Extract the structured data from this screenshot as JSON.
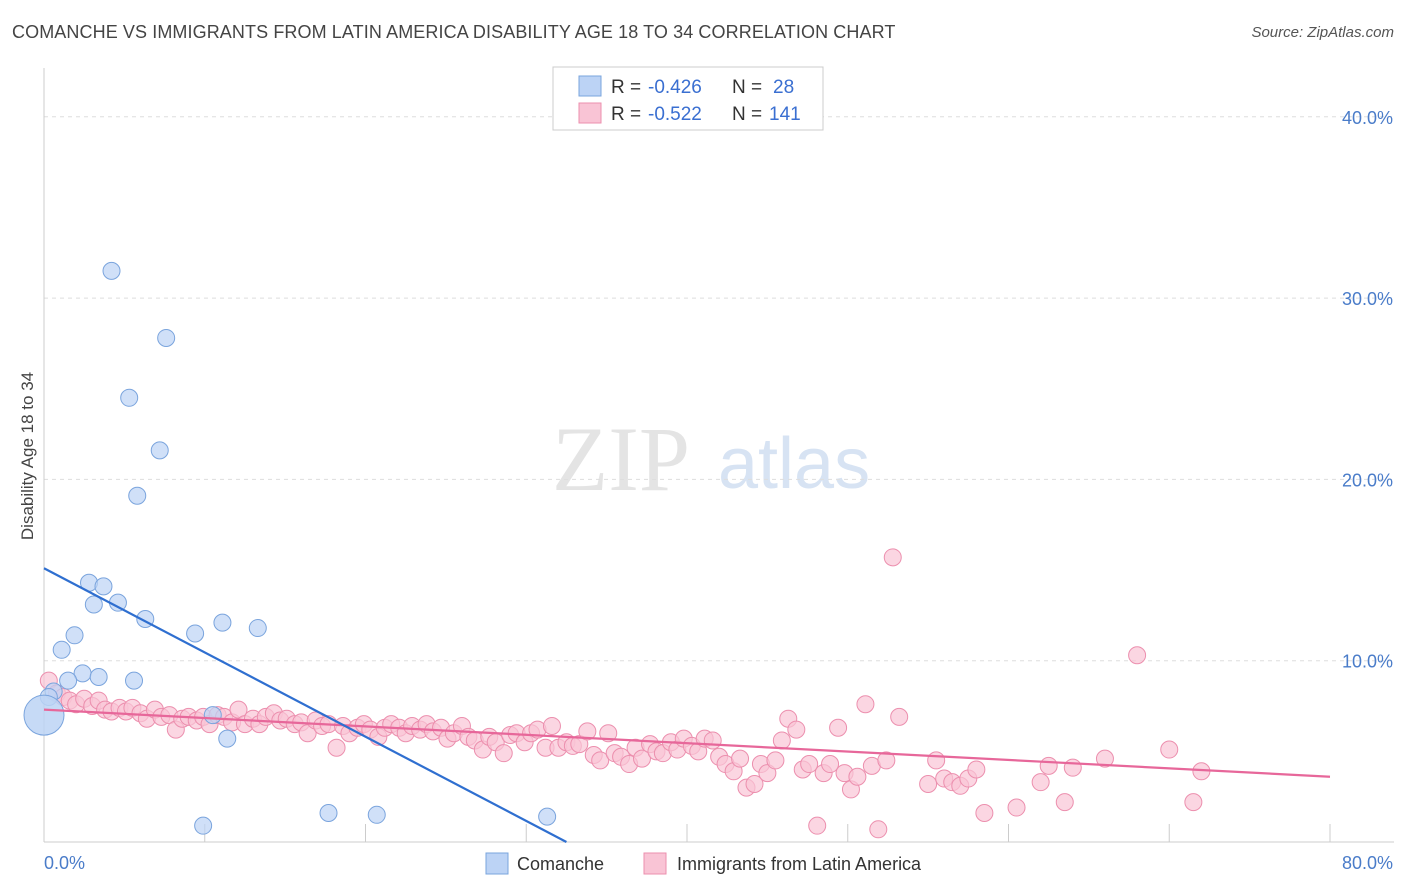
{
  "title": "COMANCHE VS IMMIGRANTS FROM LATIN AMERICA DISABILITY AGE 18 TO 34 CORRELATION CHART",
  "source": "Source: ZipAtlas.com",
  "watermark": {
    "part1": "ZIP",
    "part2": "atlas"
  },
  "colors": {
    "comanche_fill": "#bcd3f5",
    "comanche_stroke": "#7aa4dd",
    "comanche_line": "#2f6fd0",
    "latin_fill": "#f9c4d5",
    "latin_stroke": "#ec8fae",
    "latin_line": "#e7679a",
    "axis_text": "#4a7cc9",
    "grid": "#dddddd"
  },
  "legend": {
    "rows": [
      {
        "r_label": "R = ",
        "r_value": "-0.426",
        "n_label": "N = ",
        "n_value": "28"
      },
      {
        "r_label": "R = ",
        "r_value": "-0.522",
        "n_label": "N = ",
        "n_value": "141"
      }
    ]
  },
  "bottom_legend": {
    "comanche": "Comanche",
    "latin": "Immigrants from Latin America"
  },
  "chart_data": {
    "type": "scatter",
    "title": "COMANCHE VS IMMIGRANTS FROM LATIN AMERICA DISABILITY AGE 18 TO 34 CORRELATION CHART",
    "xlabel": "",
    "ylabel": "Disability Age 18 to 34",
    "xlim": [
      0,
      80
    ],
    "ylim": [
      0,
      42
    ],
    "x_tick_labels": [
      "0.0%",
      "80.0%"
    ],
    "y_ticks": [
      10,
      20,
      30,
      40
    ],
    "y_tick_labels": [
      "10.0%",
      "20.0%",
      "30.0%",
      "40.0%"
    ],
    "series": [
      {
        "name": "Comanche",
        "r": -0.426,
        "n": 28,
        "trend": {
          "x0": 0,
          "y0": 15.1,
          "x1": 32.5,
          "y1": 0
        },
        "points": [
          [
            4.2,
            31.5
          ],
          [
            7.6,
            27.8
          ],
          [
            5.3,
            24.5
          ],
          [
            7.2,
            21.6
          ],
          [
            5.8,
            19.1
          ],
          [
            2.8,
            14.3
          ],
          [
            3.7,
            14.1
          ],
          [
            3.1,
            13.1
          ],
          [
            4.6,
            13.2
          ],
          [
            6.3,
            12.3
          ],
          [
            11.1,
            12.1
          ],
          [
            13.3,
            11.8
          ],
          [
            9.4,
            11.5
          ],
          [
            1.9,
            11.4
          ],
          [
            1.1,
            10.6
          ],
          [
            2.4,
            9.3
          ],
          [
            3.4,
            9.1
          ],
          [
            5.6,
            8.9
          ],
          [
            1.5,
            8.9
          ],
          [
            0.6,
            8.3
          ],
          [
            0.3,
            8.0
          ],
          [
            0.0,
            7.0
          ],
          [
            10.5,
            7.0
          ],
          [
            11.4,
            5.7
          ],
          [
            9.9,
            0.9
          ],
          [
            17.7,
            1.6
          ],
          [
            20.7,
            1.5
          ],
          [
            31.3,
            1.4
          ]
        ]
      },
      {
        "name": "Immigrants from Latin America",
        "r": -0.522,
        "n": 141,
        "trend": {
          "x0": 0,
          "y0": 7.3,
          "x1": 80,
          "y1": 3.6
        },
        "points": [
          [
            0.3,
            8.9
          ],
          [
            0.8,
            8.2
          ],
          [
            1.2,
            8.0
          ],
          [
            1.6,
            7.8
          ],
          [
            2.0,
            7.6
          ],
          [
            2.5,
            7.9
          ],
          [
            3.0,
            7.5
          ],
          [
            3.4,
            7.8
          ],
          [
            3.8,
            7.3
          ],
          [
            4.2,
            7.2
          ],
          [
            4.7,
            7.4
          ],
          [
            5.1,
            7.2
          ],
          [
            5.5,
            7.4
          ],
          [
            6.0,
            7.1
          ],
          [
            6.4,
            6.8
          ],
          [
            6.9,
            7.3
          ],
          [
            7.3,
            6.9
          ],
          [
            7.8,
            7.0
          ],
          [
            8.2,
            6.2
          ],
          [
            8.6,
            6.8
          ],
          [
            9.0,
            6.9
          ],
          [
            9.5,
            6.7
          ],
          [
            9.9,
            6.9
          ],
          [
            10.3,
            6.5
          ],
          [
            10.8,
            7.0
          ],
          [
            11.2,
            6.9
          ],
          [
            11.7,
            6.6
          ],
          [
            12.1,
            7.3
          ],
          [
            12.5,
            6.5
          ],
          [
            13.0,
            6.8
          ],
          [
            13.4,
            6.5
          ],
          [
            13.8,
            6.9
          ],
          [
            14.3,
            7.1
          ],
          [
            14.7,
            6.7
          ],
          [
            15.1,
            6.8
          ],
          [
            15.6,
            6.5
          ],
          [
            16.0,
            6.6
          ],
          [
            16.4,
            6.0
          ],
          [
            16.9,
            6.7
          ],
          [
            17.3,
            6.4
          ],
          [
            17.7,
            6.5
          ],
          [
            18.2,
            5.2
          ],
          [
            18.6,
            6.4
          ],
          [
            19.0,
            6.0
          ],
          [
            19.5,
            6.3
          ],
          [
            19.9,
            6.5
          ],
          [
            20.3,
            6.2
          ],
          [
            20.8,
            5.8
          ],
          [
            21.2,
            6.3
          ],
          [
            21.6,
            6.5
          ],
          [
            22.1,
            6.3
          ],
          [
            22.5,
            6.0
          ],
          [
            22.9,
            6.4
          ],
          [
            23.4,
            6.2
          ],
          [
            23.8,
            6.5
          ],
          [
            24.2,
            6.1
          ],
          [
            24.7,
            6.3
          ],
          [
            25.1,
            5.7
          ],
          [
            25.5,
            6.0
          ],
          [
            26.0,
            6.4
          ],
          [
            26.4,
            5.8
          ],
          [
            26.8,
            5.6
          ],
          [
            27.3,
            5.1
          ],
          [
            27.7,
            5.8
          ],
          [
            28.1,
            5.5
          ],
          [
            28.6,
            4.9
          ],
          [
            29.0,
            5.9
          ],
          [
            29.4,
            6.0
          ],
          [
            29.9,
            5.5
          ],
          [
            30.3,
            6.0
          ],
          [
            30.7,
            6.2
          ],
          [
            31.2,
            5.2
          ],
          [
            31.6,
            6.4
          ],
          [
            32.0,
            5.2
          ],
          [
            32.5,
            5.5
          ],
          [
            32.9,
            5.3
          ],
          [
            33.3,
            5.4
          ],
          [
            33.8,
            6.1
          ],
          [
            34.2,
            4.8
          ],
          [
            34.6,
            4.5
          ],
          [
            35.1,
            6.0
          ],
          [
            35.5,
            4.9
          ],
          [
            35.9,
            4.7
          ],
          [
            36.4,
            4.3
          ],
          [
            36.8,
            5.2
          ],
          [
            37.2,
            4.6
          ],
          [
            37.7,
            5.4
          ],
          [
            38.1,
            5.0
          ],
          [
            38.5,
            4.9
          ],
          [
            39.0,
            5.5
          ],
          [
            39.4,
            5.1
          ],
          [
            39.8,
            5.7
          ],
          [
            40.3,
            5.3
          ],
          [
            40.7,
            5.0
          ],
          [
            41.1,
            5.7
          ],
          [
            41.6,
            5.6
          ],
          [
            42.0,
            4.7
          ],
          [
            42.4,
            4.3
          ],
          [
            42.9,
            3.9
          ],
          [
            43.3,
            4.6
          ],
          [
            43.7,
            3.0
          ],
          [
            44.2,
            3.2
          ],
          [
            44.6,
            4.3
          ],
          [
            45.0,
            3.8
          ],
          [
            45.5,
            4.5
          ],
          [
            45.9,
            5.6
          ],
          [
            46.3,
            6.8
          ],
          [
            46.8,
            6.2
          ],
          [
            47.2,
            4.0
          ],
          [
            47.6,
            4.3
          ],
          [
            48.1,
            0.9
          ],
          [
            48.5,
            3.8
          ],
          [
            48.9,
            4.3
          ],
          [
            49.4,
            6.3
          ],
          [
            49.8,
            3.8
          ],
          [
            50.2,
            2.9
          ],
          [
            50.6,
            3.6
          ],
          [
            51.1,
            7.6
          ],
          [
            51.5,
            4.2
          ],
          [
            51.9,
            0.7
          ],
          [
            52.4,
            4.5
          ],
          [
            52.8,
            15.7
          ],
          [
            53.2,
            6.9
          ],
          [
            55.0,
            3.2
          ],
          [
            55.5,
            4.5
          ],
          [
            56.0,
            3.5
          ],
          [
            56.5,
            3.3
          ],
          [
            57.0,
            3.1
          ],
          [
            57.5,
            3.5
          ],
          [
            58.0,
            4.0
          ],
          [
            58.5,
            1.6
          ],
          [
            60.5,
            1.9
          ],
          [
            62.0,
            3.3
          ],
          [
            62.5,
            4.2
          ],
          [
            63.5,
            2.2
          ],
          [
            64.0,
            4.1
          ],
          [
            66.0,
            4.6
          ],
          [
            68.0,
            10.3
          ],
          [
            70.0,
            5.1
          ],
          [
            71.5,
            2.2
          ],
          [
            72.0,
            3.9
          ]
        ]
      }
    ]
  }
}
